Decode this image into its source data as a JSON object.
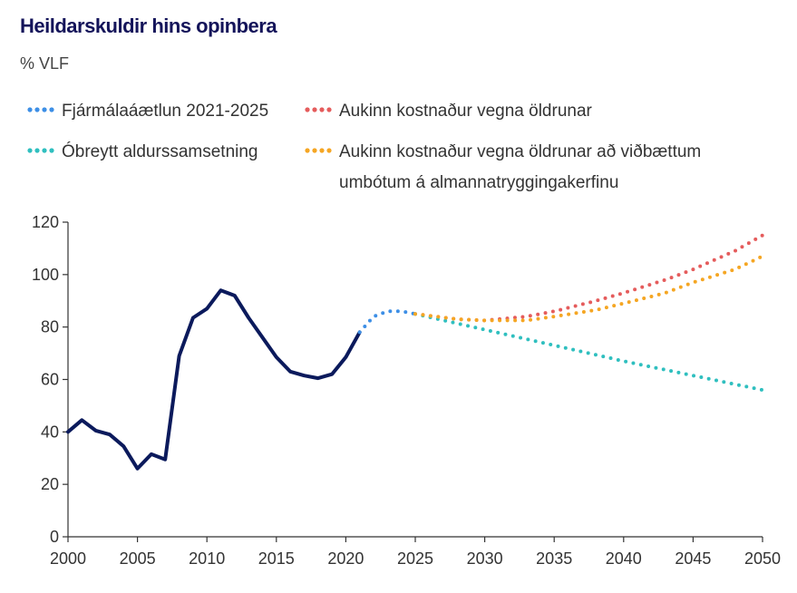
{
  "chart_data": {
    "type": "line",
    "title": "Heildarskuldir hins opinbera",
    "ylabel": "% VLF",
    "xlim": [
      2000,
      2050
    ],
    "ylim": [
      0,
      120
    ],
    "x_ticks": [
      "2000",
      "2005",
      "2010",
      "2015",
      "2020",
      "2025",
      "2030",
      "2035",
      "2040",
      "2045",
      "2050"
    ],
    "y_ticks": [
      "0",
      "20",
      "40",
      "60",
      "80",
      "100",
      "120"
    ],
    "colors": {
      "history": "#0b1a5c",
      "plan": "#3d8fe6",
      "unchanged": "#2fbfbf",
      "aging": "#e55c5c",
      "aging_reform": "#f5a623"
    },
    "series": [
      {
        "key": "history",
        "style": "solid",
        "x": [
          2000,
          2001,
          2002,
          2003,
          2004,
          2005,
          2006,
          2007,
          2008,
          2009,
          2010,
          2011,
          2012,
          2013,
          2014,
          2015,
          2016,
          2017,
          2018,
          2019,
          2020,
          2021
        ],
        "values": [
          40,
          44.5,
          40.5,
          39,
          34.5,
          26,
          31.5,
          29.5,
          69,
          83.5,
          87,
          94,
          92,
          83.5,
          76,
          68.5,
          63,
          61.5,
          60.5,
          62,
          68.5,
          78
        ]
      },
      {
        "key": "plan",
        "name": "Fjármálaáætlun 2021-2025",
        "style": "dotted",
        "x": [
          2021,
          2022,
          2023,
          2024,
          2025
        ],
        "values": [
          78,
          84,
          86,
          86,
          85
        ]
      },
      {
        "key": "aging",
        "name": "Aukinn kostnaður vegna öldrunar",
        "style": "dotted",
        "x": [
          2025,
          2028,
          2030,
          2033,
          2035,
          2038,
          2040,
          2043,
          2045,
          2048,
          2050
        ],
        "values": [
          85,
          83,
          82.5,
          84,
          86,
          90,
          93,
          98,
          102,
          109,
          115
        ]
      },
      {
        "key": "unchanged",
        "name": "Óbreytt aldurssamsetning",
        "style": "dotted",
        "x": [
          2025,
          2030,
          2035,
          2040,
          2045,
          2050
        ],
        "values": [
          85,
          79,
          73,
          67,
          61.5,
          56
        ]
      },
      {
        "key": "aging_reform",
        "name": "Aukinn kostnaður vegna öldrunar að viðbættum umbótum á almannatryggingakerfinu",
        "style": "dotted",
        "x": [
          2025,
          2028,
          2030,
          2033,
          2035,
          2038,
          2040,
          2043,
          2045,
          2048,
          2050
        ],
        "values": [
          85,
          83,
          82.5,
          82.5,
          84,
          86.5,
          89,
          93,
          97,
          102,
          107
        ]
      }
    ]
  },
  "legend": {
    "plan": "Fjármálaáætlun 2021-2025",
    "aging": "Aukinn kostnaður vegna öldrunar",
    "unchanged": "Óbreytt aldurssamsetning",
    "aging_reform_line1": "Aukinn kostnaður vegna öldrunar að viðbættum",
    "aging_reform_line2": "umbótum á almannatryggingakerfinu"
  }
}
